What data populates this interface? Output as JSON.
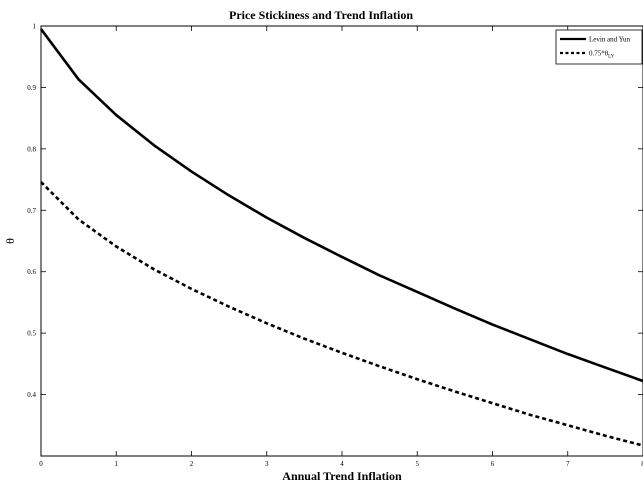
{
  "chart_data": {
    "type": "line",
    "title": "Price Stickiness and Trend Inflation",
    "xlabel": "Annual Trend Inflation",
    "ylabel": "θ",
    "xlim": [
      0,
      8
    ],
    "ylim": [
      0.3,
      1.0
    ],
    "xticks": [
      "0",
      "1",
      "2",
      "3",
      "4",
      "5",
      "6",
      "7",
      "8"
    ],
    "yticks": [
      "0.4",
      "0.5",
      "0.6",
      "0.7",
      "0.8",
      "0.9",
      "1"
    ],
    "legend_position": "top-right",
    "series": [
      {
        "name": "Levin and Yun",
        "style": "solid",
        "x": [
          0,
          0.5,
          1,
          1.5,
          2,
          2.5,
          3,
          3.5,
          4,
          4.5,
          5,
          5.5,
          6,
          6.5,
          7,
          7.5,
          8
        ],
        "values": [
          0.995,
          0.913,
          0.855,
          0.806,
          0.763,
          0.724,
          0.688,
          0.655,
          0.624,
          0.594,
          0.567,
          0.54,
          0.514,
          0.49,
          0.466,
          0.444,
          0.422
        ]
      },
      {
        "name": "0.75*θ",
        "name_subscript": "LY",
        "style": "dashed",
        "x": [
          0,
          0.5,
          1,
          1.5,
          2,
          2.5,
          3,
          3.5,
          4,
          4.5,
          5,
          5.5,
          6,
          6.5,
          7,
          7.5,
          8
        ],
        "values": [
          0.746,
          0.685,
          0.641,
          0.604,
          0.572,
          0.543,
          0.516,
          0.491,
          0.468,
          0.446,
          0.425,
          0.405,
          0.386,
          0.367,
          0.35,
          0.333,
          0.317
        ]
      }
    ]
  }
}
